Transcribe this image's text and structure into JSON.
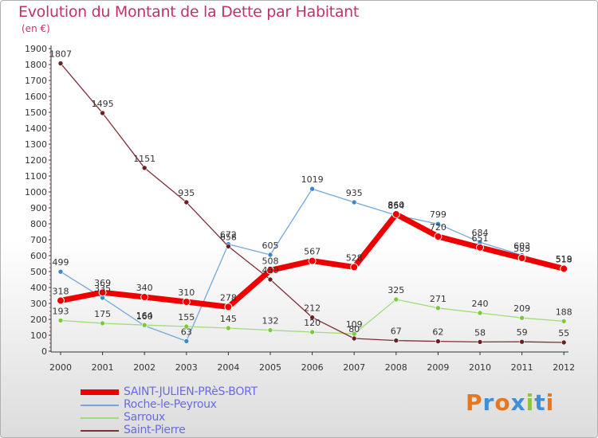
{
  "title": "Evolution du Montant de la Dette par Habitant",
  "subtitle": "(en €)",
  "logo": {
    "text": "Proxiti",
    "letter_colors": [
      "#e8761c",
      "#3f8fd8",
      "#e8761c",
      "#3f8fd8",
      "#8cc63f",
      "#3f8fd8",
      "#e8761c"
    ]
  },
  "chart_data": {
    "type": "line",
    "x": [
      "2000",
      "2001",
      "2002",
      "2003",
      "2004",
      "2005",
      "2006",
      "2007",
      "2008",
      "2009",
      "2010",
      "2011",
      "2012"
    ],
    "ylim": [
      0,
      1900
    ],
    "yticks": [
      0,
      100,
      200,
      300,
      400,
      500,
      600,
      700,
      800,
      900,
      1000,
      1100,
      1200,
      1300,
      1400,
      1500,
      1600,
      1700,
      1800,
      1900
    ],
    "grid": false,
    "legend_position": "bottom-left",
    "series": [
      {
        "name": "SAINT-JULIEN-PRèS-BORT",
        "color": "#ee0000",
        "marker": "#ee0000",
        "emphasis": true,
        "values": [
          318,
          369,
          340,
          310,
          278,
          508,
          567,
          528,
          860,
          720,
          651,
          585,
          518
        ]
      },
      {
        "name": "Roche-le-Peyroux",
        "color": "#72a8d8",
        "marker": "#3a86d0",
        "values": [
          499,
          335,
          160,
          63,
          672,
          605,
          1019,
          935,
          854,
          799,
          684,
          603,
          519
        ]
      },
      {
        "name": "Sarroux",
        "color": "#a0dc78",
        "marker": "#7cc83e",
        "values": [
          193,
          175,
          164,
          155,
          145,
          132,
          120,
          109,
          325,
          271,
          240,
          209,
          188
        ]
      },
      {
        "name": "Saint-Pierre",
        "color": "#7e2e34",
        "marker": "#6c1f24",
        "values": [
          1807,
          1495,
          1151,
          935,
          658,
          450,
          212,
          80,
          67,
          62,
          58,
          59,
          55
        ]
      }
    ]
  }
}
